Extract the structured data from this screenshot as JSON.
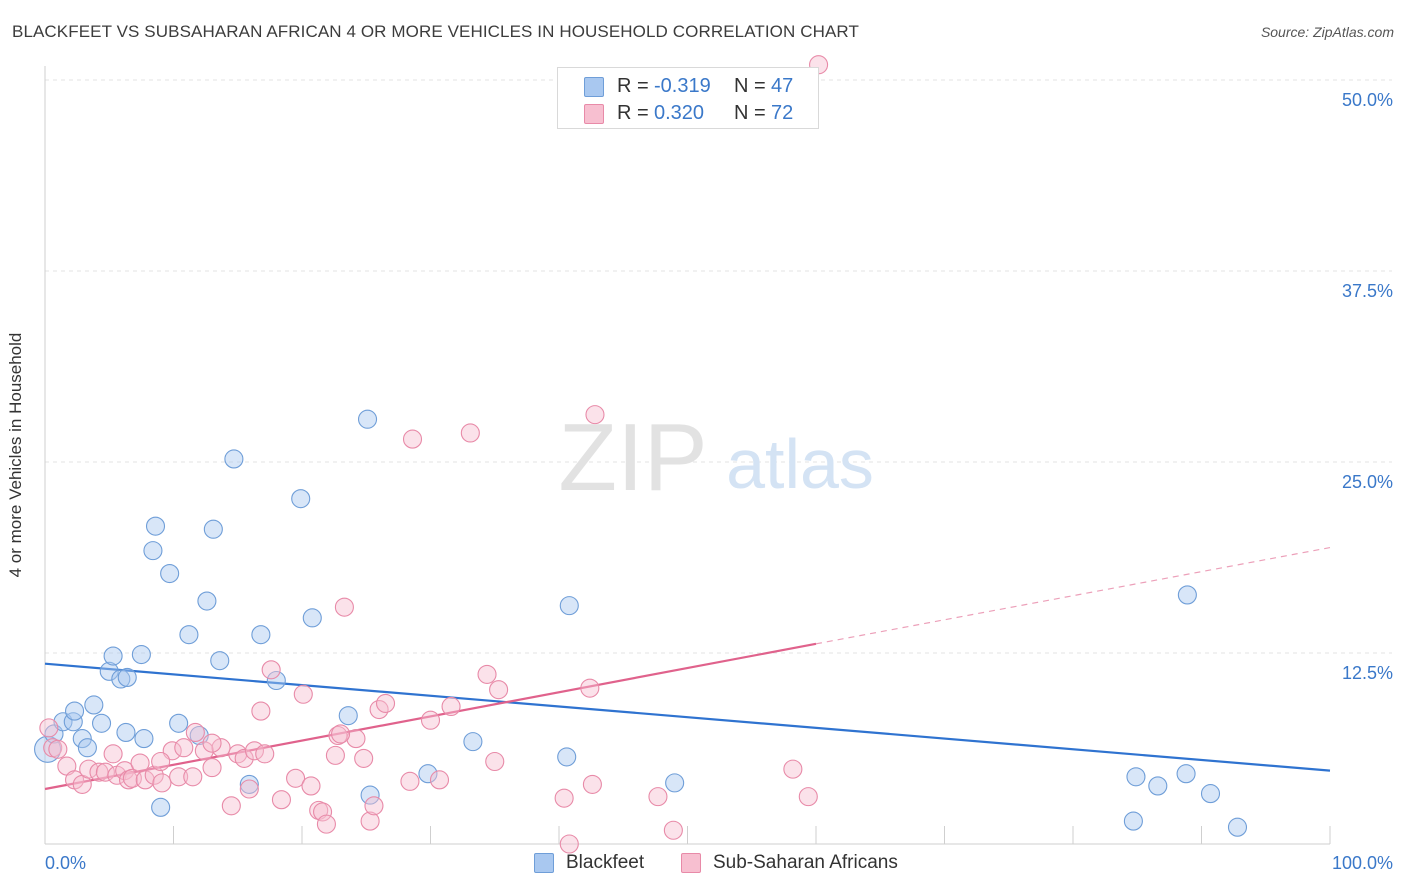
{
  "header": {
    "title": "BLACKFEET VS SUBSAHARAN AFRICAN 4 OR MORE VEHICLES IN HOUSEHOLD CORRELATION CHART",
    "source": "Source: ZipAtlas.com"
  },
  "watermark": {
    "zip": "ZIP",
    "atlas": "atlas"
  },
  "legend_top": [
    {
      "r_label": "R =",
      "r_value": "-0.319",
      "n_label": "N =",
      "n_value": "47",
      "color": "#a9c8f0",
      "border": "#6f9ed8"
    },
    {
      "r_label": "R =",
      "r_value": "0.320",
      "n_label": "N =",
      "n_value": "72",
      "color": "#f7bfd0",
      "border": "#e88aa8"
    }
  ],
  "legend_bottom": [
    {
      "label": "Blackfeet",
      "color": "#a9c8f0",
      "border": "#6f9ed8"
    },
    {
      "label": "Sub-Saharan Africans",
      "color": "#f7bfd0",
      "border": "#e88aa8"
    }
  ],
  "chart_data": {
    "type": "scatter",
    "title": "BLACKFEET VS SUBSAHARAN AFRICAN 4 OR MORE VEHICLES IN HOUSEHOLD CORRELATION CHART",
    "xlabel": "",
    "ylabel": "4 or more Vehicles in Household",
    "xlim": [
      0,
      100
    ],
    "ylim": [
      0,
      50
    ],
    "x_tick_labels": [
      "0.0%",
      "100.0%"
    ],
    "y_tick_labels": [
      "12.5%",
      "25.0%",
      "37.5%",
      "50.0%"
    ],
    "y_ticks": [
      12.5,
      25.0,
      37.5,
      50.0
    ],
    "grid": "horizontal dashed",
    "legend_position": "top-center",
    "series": [
      {
        "name": "Blackfeet",
        "color": "#a9c8f0",
        "edge": "#6f9ed8",
        "line_color": "#2f73d0",
        "trend": [
          [
            0,
            11.8
          ],
          [
            100,
            4.8
          ]
        ],
        "points": [
          [
            0.2,
            6.2
          ],
          [
            0.7,
            7.2
          ],
          [
            1.4,
            8.0
          ],
          [
            2.2,
            8.0
          ],
          [
            2.3,
            8.7
          ],
          [
            2.9,
            6.9
          ],
          [
            3.3,
            6.3
          ],
          [
            3.8,
            9.1
          ],
          [
            4.4,
            7.9
          ],
          [
            5.0,
            11.3
          ],
          [
            5.3,
            12.3
          ],
          [
            5.9,
            10.8
          ],
          [
            6.4,
            10.9
          ],
          [
            6.3,
            7.3
          ],
          [
            7.5,
            12.4
          ],
          [
            7.7,
            6.9
          ],
          [
            8.4,
            19.2
          ],
          [
            8.6,
            20.8
          ],
          [
            9.0,
            2.4
          ],
          [
            9.7,
            17.7
          ],
          [
            10.4,
            7.9
          ],
          [
            11.2,
            13.7
          ],
          [
            12.0,
            7.1
          ],
          [
            12.6,
            15.9
          ],
          [
            13.1,
            20.6
          ],
          [
            13.6,
            12.0
          ],
          [
            14.7,
            25.2
          ],
          [
            15.9,
            3.9
          ],
          [
            16.8,
            13.7
          ],
          [
            18.0,
            10.7
          ],
          [
            19.9,
            22.6
          ],
          [
            20.8,
            14.8
          ],
          [
            23.6,
            8.4
          ],
          [
            25.1,
            27.8
          ],
          [
            25.3,
            3.2
          ],
          [
            29.8,
            4.6
          ],
          [
            33.3,
            6.7
          ],
          [
            40.6,
            5.7
          ],
          [
            40.8,
            15.6
          ],
          [
            49.0,
            4.0
          ],
          [
            84.7,
            1.5
          ],
          [
            84.9,
            4.4
          ],
          [
            86.6,
            3.8
          ],
          [
            88.8,
            4.6
          ],
          [
            88.9,
            16.3
          ],
          [
            90.7,
            3.3
          ],
          [
            92.8,
            1.1
          ]
        ]
      },
      {
        "name": "Sub-Saharan Africans",
        "color": "#f7bfd0",
        "edge": "#e88aa8",
        "line_color": "#e0628c",
        "trend": [
          [
            0,
            3.6
          ],
          [
            60,
            13.1
          ]
        ],
        "trend_dashed": [
          [
            60,
            13.1
          ],
          [
            100,
            19.4
          ]
        ],
        "points": [
          [
            0.3,
            7.6
          ],
          [
            0.6,
            6.3
          ],
          [
            1.0,
            6.2
          ],
          [
            1.7,
            5.1
          ],
          [
            2.3,
            4.2
          ],
          [
            2.9,
            3.9
          ],
          [
            3.4,
            4.9
          ],
          [
            4.2,
            4.7
          ],
          [
            4.7,
            4.7
          ],
          [
            5.3,
            5.9
          ],
          [
            5.6,
            4.5
          ],
          [
            6.2,
            4.8
          ],
          [
            6.5,
            4.2
          ],
          [
            6.8,
            4.3
          ],
          [
            7.4,
            5.3
          ],
          [
            7.8,
            4.2
          ],
          [
            8.5,
            4.5
          ],
          [
            9.1,
            4.0
          ],
          [
            9.9,
            6.1
          ],
          [
            10.4,
            4.4
          ],
          [
            10.8,
            6.3
          ],
          [
            11.5,
            4.4
          ],
          [
            11.7,
            7.3
          ],
          [
            12.4,
            6.1
          ],
          [
            13.0,
            5.0
          ],
          [
            13.7,
            6.3
          ],
          [
            14.5,
            2.5
          ],
          [
            15.0,
            5.9
          ],
          [
            15.5,
            5.6
          ],
          [
            15.9,
            3.6
          ],
          [
            16.3,
            6.1
          ],
          [
            16.8,
            8.7
          ],
          [
            17.1,
            5.9
          ],
          [
            17.6,
            11.4
          ],
          [
            18.4,
            2.9
          ],
          [
            19.5,
            4.3
          ],
          [
            20.1,
            9.8
          ],
          [
            20.7,
            3.8
          ],
          [
            21.3,
            2.2
          ],
          [
            21.6,
            2.1
          ],
          [
            21.9,
            1.3
          ],
          [
            22.6,
            5.8
          ],
          [
            22.8,
            7.1
          ],
          [
            23.3,
            15.5
          ],
          [
            24.2,
            6.9
          ],
          [
            24.8,
            5.6
          ],
          [
            25.3,
            1.5
          ],
          [
            25.6,
            2.5
          ],
          [
            26.0,
            8.8
          ],
          [
            26.5,
            9.2
          ],
          [
            28.4,
            4.1
          ],
          [
            28.6,
            26.5
          ],
          [
            30.0,
            8.1
          ],
          [
            30.7,
            4.2
          ],
          [
            31.6,
            9.0
          ],
          [
            33.1,
            26.9
          ],
          [
            34.4,
            11.1
          ],
          [
            35.0,
            5.4
          ],
          [
            35.3,
            10.1
          ],
          [
            40.4,
            3.0
          ],
          [
            40.8,
            0.0
          ],
          [
            42.4,
            10.2
          ],
          [
            42.8,
            28.1
          ],
          [
            42.6,
            3.9
          ],
          [
            47.7,
            3.1
          ],
          [
            48.9,
            0.9
          ],
          [
            58.2,
            4.9
          ],
          [
            59.4,
            3.1
          ],
          [
            60.2,
            51.0
          ],
          [
            23.0,
            7.2
          ],
          [
            13.0,
            6.6
          ],
          [
            9.0,
            5.4
          ]
        ]
      }
    ]
  }
}
